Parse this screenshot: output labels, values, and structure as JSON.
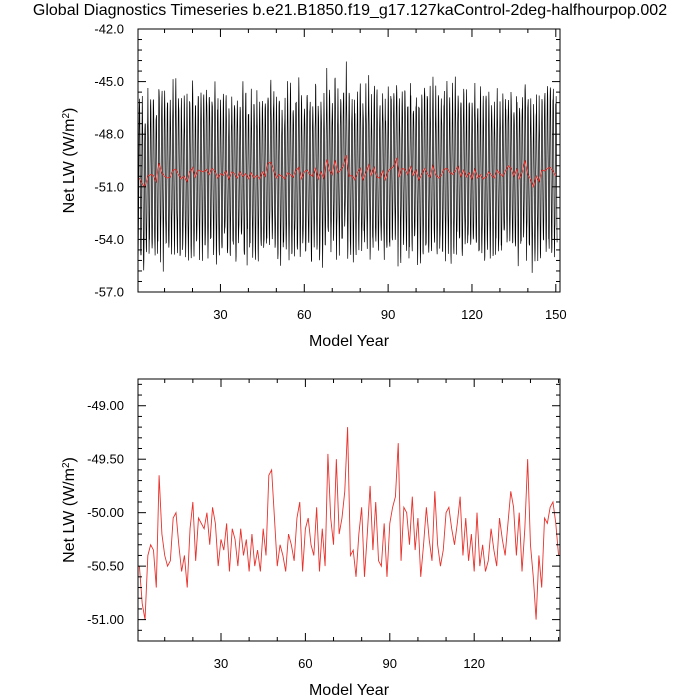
{
  "title": "Global Diagnostics Timeseries b.e21.B1850.f19_g17.127kaControl-2deg-halfhourpop.002",
  "colors": {
    "monthly": "#000000",
    "annual": "#e8322c",
    "axis": "#000000"
  },
  "chart_data": [
    {
      "type": "line",
      "xlabel": "Model Year",
      "ylabel": "Net LW (W/m",
      "ylabel_sup": "2",
      "ylabel_close": ")",
      "xlim": [
        0.5,
        151.5
      ],
      "ylim": [
        -57.0,
        -42.0
      ],
      "xticks": [
        30,
        60,
        90,
        120,
        150
      ],
      "xtick_labels": [
        "30",
        "60",
        "90",
        "120",
        "150"
      ],
      "yticks": [
        -57.0,
        -54.0,
        -51.0,
        -48.0,
        -45.0,
        -42.0
      ],
      "ytick_labels": [
        "-57.0",
        "-54.0",
        "-51.0",
        "-48.0",
        "-45.0",
        "-42.0"
      ],
      "series": [
        {
          "name": "",
          "style": "monthly",
          "seasonal_cycle": "annual sinusoid, peak-to-peak about 9 W/m2, mean about -50.0, extremes near -42.2 and -56.3",
          "year_range": [
            1,
            151
          ]
        },
        {
          "name": "",
          "style": "annual",
          "x": [
            1,
            2,
            3,
            4,
            5,
            6,
            7,
            8,
            9,
            10,
            11,
            12,
            13,
            14,
            15,
            16,
            17,
            18,
            19,
            20,
            21,
            22,
            23,
            24,
            25,
            26,
            27,
            28,
            29,
            30,
            31,
            32,
            33,
            34,
            35,
            36,
            37,
            38,
            39,
            40,
            41,
            42,
            43,
            44,
            45,
            46,
            47,
            48,
            49,
            50,
            51,
            52,
            53,
            54,
            55,
            56,
            57,
            58,
            59,
            60,
            61,
            62,
            63,
            64,
            65,
            66,
            67,
            68,
            69,
            70,
            71,
            72,
            73,
            74,
            75,
            76,
            77,
            78,
            79,
            80,
            81,
            82,
            83,
            84,
            85,
            86,
            87,
            88,
            89,
            90,
            91,
            92,
            93,
            94,
            95,
            96,
            97,
            98,
            99,
            100,
            101,
            102,
            103,
            104,
            105,
            106,
            107,
            108,
            109,
            110,
            111,
            112,
            113,
            114,
            115,
            116,
            117,
            118,
            119,
            120,
            121,
            122,
            123,
            124,
            125,
            126,
            127,
            128,
            129,
            130,
            131,
            132,
            133,
            134,
            135,
            136,
            137,
            138,
            139,
            140,
            141,
            142,
            143,
            144,
            145,
            146,
            147,
            148,
            149,
            150
          ],
          "y": [
            -50.5,
            -50.85,
            -51.0,
            -50.4,
            -50.3,
            -50.35,
            -50.7,
            -49.65,
            -50.2,
            -50.4,
            -50.5,
            -50.45,
            -50.05,
            -50.0,
            -50.3,
            -50.55,
            -50.4,
            -50.7,
            -50.15,
            -49.9,
            -50.45,
            -50.05,
            -50.1,
            -50.15,
            -50.0,
            -50.3,
            -49.95,
            -50.1,
            -50.5,
            -50.25,
            -50.35,
            -50.1,
            -50.55,
            -50.15,
            -50.25,
            -50.5,
            -50.15,
            -50.4,
            -50.25,
            -50.55,
            -50.2,
            -50.5,
            -50.35,
            -50.55,
            -50.15,
            -50.4,
            -49.65,
            -49.6,
            -50.05,
            -50.5,
            -50.3,
            -50.4,
            -50.55,
            -50.2,
            -50.3,
            -50.45,
            -50.05,
            -49.9,
            -50.55,
            -50.15,
            -50.05,
            -50.3,
            -50.4,
            -49.95,
            -50.55,
            -50.15,
            -50.5,
            -49.45,
            -50.05,
            -50.3,
            -49.5,
            -50.2,
            -50.05,
            -49.8,
            -49.2,
            -50.4,
            -50.35,
            -50.6,
            -50.2,
            -49.95,
            -50.6,
            -50.2,
            -49.75,
            -50.35,
            -49.9,
            -50.45,
            -50.5,
            -50.1,
            -50.6,
            -50.1,
            -49.95,
            -49.85,
            -49.35,
            -50.45,
            -49.95,
            -50.0,
            -50.3,
            -49.85,
            -50.35,
            -50.05,
            -50.6,
            -50.3,
            -49.95,
            -50.25,
            -50.45,
            -49.8,
            -50.3,
            -50.5,
            -50.35,
            -50.0,
            -49.95,
            -50.15,
            -50.3,
            -50.1,
            -49.85,
            -50.4,
            -50.05,
            -50.45,
            -50.2,
            -50.55,
            -50.0,
            -50.5,
            -50.3,
            -50.55,
            -50.45,
            -50.15,
            -50.35,
            -50.5,
            -50.05,
            -50.25,
            -50.4,
            -50.1,
            -49.8,
            -49.95,
            -50.4,
            -50.0,
            -50.55,
            -50.15,
            -49.5,
            -50.3,
            -50.6,
            -51.0,
            -50.4,
            -50.7,
            -50.05,
            -50.1,
            -49.95,
            -49.9,
            -50.1,
            -50.4
          ]
        }
      ]
    },
    {
      "type": "line",
      "xlabel": "Model Year",
      "ylabel": "Net LW (W/m",
      "ylabel_sup": "2",
      "ylabel_close": ")",
      "xlim": [
        0.5,
        150.5
      ],
      "ylim": [
        -51.2,
        -48.75
      ],
      "xticks": [
        30,
        60,
        90,
        120
      ],
      "xtick_labels": [
        "30",
        "60",
        "90",
        "120"
      ],
      "yticks": [
        -51.0,
        -50.5,
        -50.0,
        -49.5,
        -49.0
      ],
      "ytick_labels": [
        "-51.00",
        "-50.50",
        "-50.00",
        "-49.50",
        "-49.00"
      ],
      "series_ref": "annual"
    }
  ]
}
